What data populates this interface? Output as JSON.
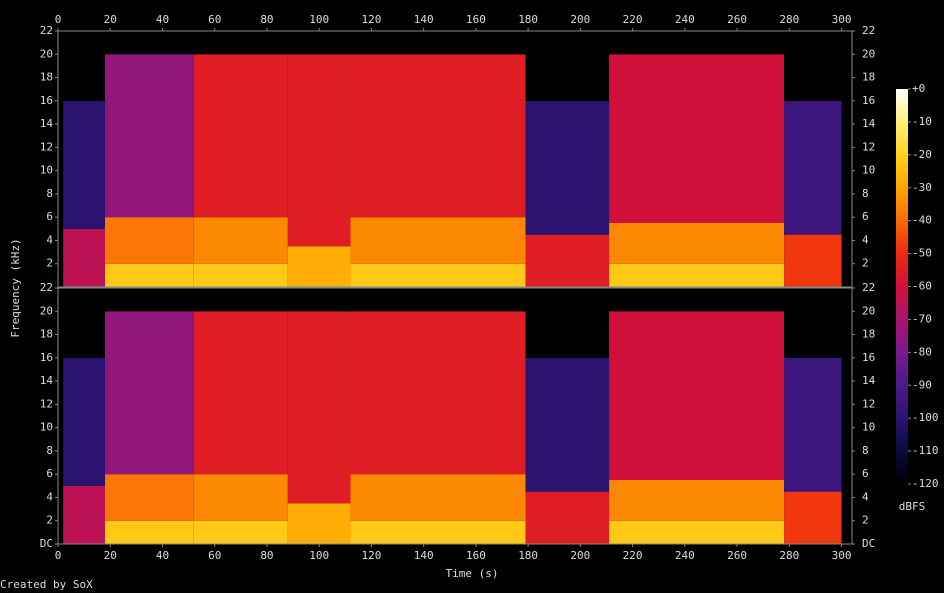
{
  "chart_data": {
    "type": "spectrogram",
    "x_label": "Time (s)",
    "y_label": "Frequency (kHz)",
    "colorbar_label": "dBFS",
    "credit": "Created by SoX",
    "xlim": [
      0,
      304
    ],
    "xticks": [
      0,
      20,
      40,
      60,
      80,
      100,
      120,
      140,
      160,
      180,
      200,
      220,
      240,
      260,
      280,
      300
    ],
    "ylim": [
      0,
      22
    ],
    "channels": [
      {
        "yticks": [
          2,
          4,
          6,
          8,
          10,
          12,
          14,
          16,
          18,
          20,
          22
        ],
        "segments": [
          {
            "t": [
              0,
              2
            ],
            "bands": [
              [
                0,
                22,
                -120
              ]
            ]
          },
          {
            "t": [
              2,
              18
            ],
            "bands": [
              [
                0,
                5,
                -65
              ],
              [
                5,
                16,
                -100
              ],
              [
                16,
                22,
                -120
              ]
            ]
          },
          {
            "t": [
              18,
              52
            ],
            "bands": [
              [
                0,
                2,
                -22
              ],
              [
                2,
                6,
                -38
              ],
              [
                6,
                20,
                -75
              ],
              [
                20,
                22,
                -120
              ]
            ]
          },
          {
            "t": [
              52,
              88
            ],
            "bands": [
              [
                0,
                2,
                -22
              ],
              [
                2,
                6,
                -35
              ],
              [
                6,
                20,
                -55
              ],
              [
                20,
                22,
                -120
              ]
            ]
          },
          {
            "t": [
              88,
              112
            ],
            "bands": [
              [
                0,
                3.5,
                -28
              ],
              [
                3.5,
                20,
                -55
              ],
              [
                20,
                22,
                -120
              ]
            ]
          },
          {
            "t": [
              112,
              179
            ],
            "bands": [
              [
                0,
                2,
                -22
              ],
              [
                2,
                6,
                -35
              ],
              [
                6,
                20,
                -55
              ],
              [
                20,
                22,
                -120
              ]
            ]
          },
          {
            "t": [
              179,
              211
            ],
            "bands": [
              [
                0,
                4.5,
                -55
              ],
              [
                4.5,
                16,
                -100
              ],
              [
                16,
                22,
                -120
              ]
            ]
          },
          {
            "t": [
              211,
              278
            ],
            "bands": [
              [
                0,
                2,
                -22
              ],
              [
                2,
                5.5,
                -35
              ],
              [
                5.5,
                20,
                -60
              ],
              [
                20,
                22,
                -120
              ]
            ]
          },
          {
            "t": [
              278,
              300
            ],
            "bands": [
              [
                0,
                4.5,
                -48
              ],
              [
                4.5,
                16,
                -95
              ],
              [
                16,
                22,
                -120
              ]
            ]
          },
          {
            "t": [
              300,
              304
            ],
            "bands": [
              [
                0,
                22,
                -120
              ]
            ]
          }
        ]
      },
      {
        "yticks": [
          {
            "value": 0,
            "label": "DC"
          },
          2,
          4,
          6,
          8,
          10,
          12,
          14,
          16,
          18,
          20,
          22
        ],
        "segments": [
          {
            "t": [
              0,
              2
            ],
            "bands": [
              [
                0,
                22,
                -120
              ]
            ]
          },
          {
            "t": [
              2,
              18
            ],
            "bands": [
              [
                0,
                5,
                -65
              ],
              [
                5,
                16,
                -100
              ],
              [
                16,
                22,
                -120
              ]
            ]
          },
          {
            "t": [
              18,
              52
            ],
            "bands": [
              [
                0,
                2,
                -22
              ],
              [
                2,
                6,
                -38
              ],
              [
                6,
                20,
                -75
              ],
              [
                20,
                22,
                -120
              ]
            ]
          },
          {
            "t": [
              52,
              88
            ],
            "bands": [
              [
                0,
                2,
                -22
              ],
              [
                2,
                6,
                -35
              ],
              [
                6,
                20,
                -55
              ],
              [
                20,
                22,
                -120
              ]
            ]
          },
          {
            "t": [
              88,
              112
            ],
            "bands": [
              [
                0,
                3.5,
                -28
              ],
              [
                3.5,
                20,
                -55
              ],
              [
                20,
                22,
                -120
              ]
            ]
          },
          {
            "t": [
              112,
              179
            ],
            "bands": [
              [
                0,
                2,
                -22
              ],
              [
                2,
                6,
                -35
              ],
              [
                6,
                20,
                -55
              ],
              [
                20,
                22,
                -120
              ]
            ]
          },
          {
            "t": [
              179,
              211
            ],
            "bands": [
              [
                0,
                4.5,
                -55
              ],
              [
                4.5,
                16,
                -100
              ],
              [
                16,
                22,
                -120
              ]
            ]
          },
          {
            "t": [
              211,
              278
            ],
            "bands": [
              [
                0,
                2,
                -22
              ],
              [
                2,
                5.5,
                -35
              ],
              [
                5.5,
                20,
                -60
              ],
              [
                20,
                22,
                -120
              ]
            ]
          },
          {
            "t": [
              278,
              300
            ],
            "bands": [
              [
                0,
                4.5,
                -48
              ],
              [
                4.5,
                16,
                -95
              ],
              [
                16,
                22,
                -120
              ]
            ]
          },
          {
            "t": [
              300,
              304
            ],
            "bands": [
              [
                0,
                22,
                -120
              ]
            ]
          }
        ]
      }
    ],
    "colorbar": {
      "lim": [
        -120,
        0
      ],
      "ticks": [
        {
          "value": 0,
          "label": "+0"
        },
        -10,
        -20,
        -30,
        -40,
        -50,
        -60,
        -70,
        -80,
        -90,
        -100,
        -110,
        -120
      ]
    }
  }
}
